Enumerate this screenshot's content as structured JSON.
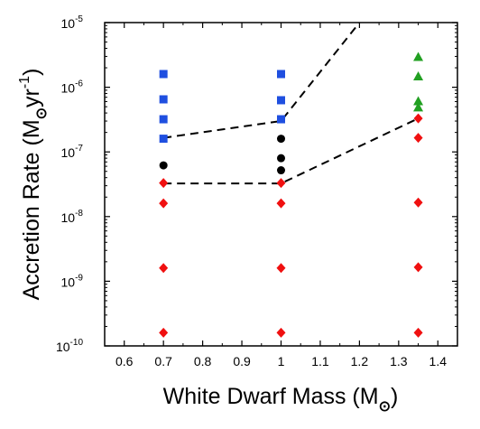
{
  "chart_data": {
    "type": "scatter",
    "xlabel": "White Dwarf Mass (M⊙)",
    "xlabel_parts": {
      "main": "White Dwarf Mass (M",
      "close": ")"
    },
    "ylabel": "Accretion Rate (M⊙yr⁻¹)",
    "ylabel_parts": {
      "main": "Accretion Rate (M",
      "unit": "yr",
      "exp": "-1",
      "close": ")"
    },
    "xlim": [
      0.55,
      1.45
    ],
    "ylim": [
      1e-10,
      1e-05
    ],
    "yscale": "log",
    "x_ticks": [
      {
        "v": 0.6,
        "label": "0.6"
      },
      {
        "v": 0.7,
        "label": "0.7"
      },
      {
        "v": 0.8,
        "label": "0.8"
      },
      {
        "v": 0.9,
        "label": "0.9"
      },
      {
        "v": 1.0,
        "label": "1"
      },
      {
        "v": 1.1,
        "label": "1.1"
      },
      {
        "v": 1.2,
        "label": "1.2"
      },
      {
        "v": 1.3,
        "label": "1.3"
      },
      {
        "v": 1.4,
        "label": "1.4"
      }
    ],
    "y_ticks": [
      {
        "v": 1e-10,
        "base": "10",
        "exp": "-10"
      },
      {
        "v": 1e-09,
        "base": "10",
        "exp": "-9"
      },
      {
        "v": 1e-08,
        "base": "10",
        "exp": "-8"
      },
      {
        "v": 1e-07,
        "base": "10",
        "exp": "-7"
      },
      {
        "v": 1e-06,
        "base": "10",
        "exp": "-6"
      },
      {
        "v": 1e-05,
        "base": "10",
        "exp": "-5"
      }
    ],
    "grid": false,
    "series": [
      {
        "marker": "square",
        "color": "#1f4fe0",
        "points": [
          [
            0.7,
            1.6e-06
          ],
          [
            0.7,
            6.5e-07
          ],
          [
            0.7,
            3.2e-07
          ],
          [
            0.7,
            1.6e-07
          ],
          [
            1.0,
            1.6e-06
          ],
          [
            1.0,
            6.3e-07
          ],
          [
            1.0,
            3.2e-07
          ]
        ]
      },
      {
        "marker": "circle",
        "color": "#000000",
        "points": [
          [
            0.7,
            6.2e-08
          ],
          [
            1.0,
            1.6e-07
          ],
          [
            1.0,
            8e-08
          ],
          [
            1.0,
            5.2e-08
          ]
        ]
      },
      {
        "marker": "triangle",
        "color": "#22a022",
        "points": [
          [
            1.35,
            2.9e-06
          ],
          [
            1.35,
            1.45e-06
          ],
          [
            1.35,
            6e-07
          ],
          [
            1.35,
            4.8e-07
          ]
        ]
      },
      {
        "marker": "diamond",
        "color": "#f01010",
        "points": [
          [
            0.7,
            3.3e-08
          ],
          [
            0.7,
            1.6e-08
          ],
          [
            0.7,
            1.6e-09
          ],
          [
            0.7,
            1.6e-10
          ],
          [
            1.0,
            3.3e-08
          ],
          [
            1.0,
            1.6e-08
          ],
          [
            1.0,
            1.6e-09
          ],
          [
            1.0,
            1.6e-10
          ],
          [
            1.35,
            3.3e-07
          ],
          [
            1.35,
            1.65e-07
          ],
          [
            1.35,
            1.65e-08
          ],
          [
            1.35,
            1.65e-09
          ],
          [
            1.35,
            1.6e-10
          ]
        ]
      }
    ],
    "boundary_lines": [
      {
        "style": "dashed",
        "color": "#000000",
        "points": [
          [
            0.7,
            1.65e-07
          ],
          [
            1.0,
            3e-07
          ],
          [
            1.2,
            1e-05
          ]
        ]
      },
      {
        "style": "dashed",
        "color": "#000000",
        "points": [
          [
            0.7,
            3.25e-08
          ],
          [
            1.0,
            3.25e-08
          ],
          [
            1.35,
            3.3e-07
          ]
        ]
      }
    ]
  }
}
